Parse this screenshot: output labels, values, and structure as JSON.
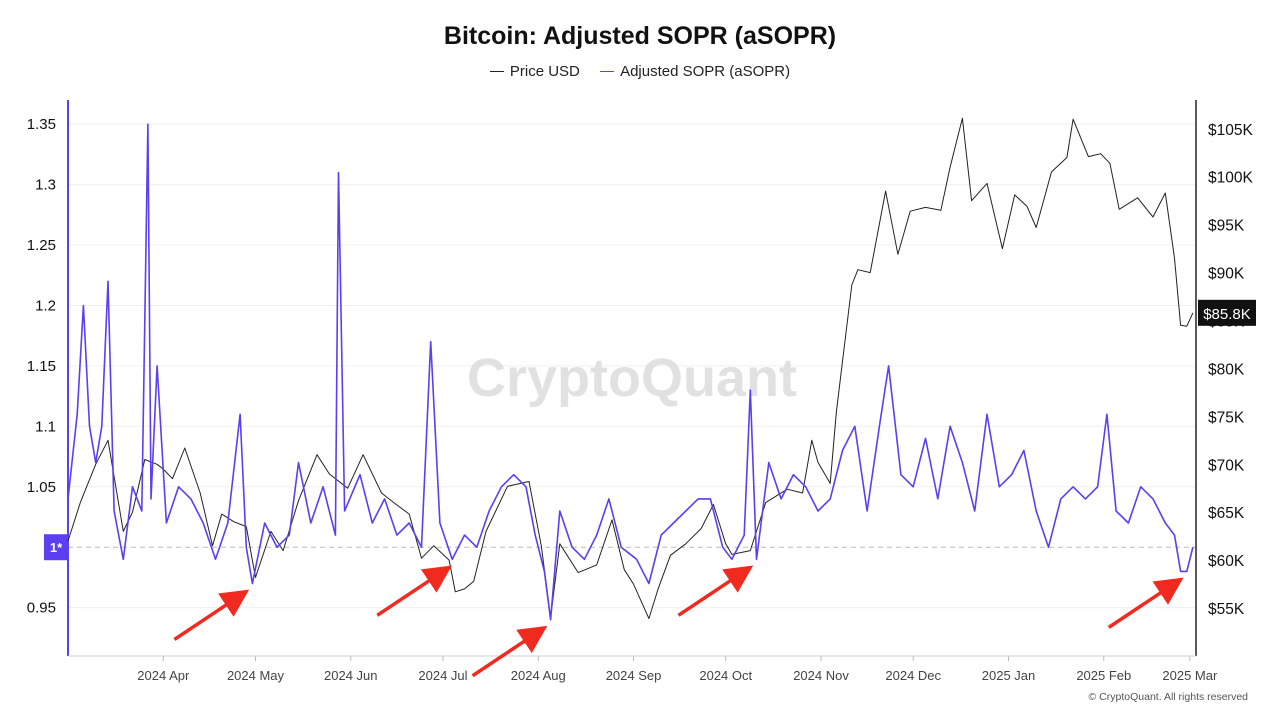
{
  "title": "Bitcoin: Adjusted SOPR (aSOPR)",
  "legend": [
    {
      "label": "Price USD",
      "color": "#222222"
    },
    {
      "label": "Adjusted SOPR (aSOPR)",
      "color": "#5b3ff0"
    }
  ],
  "watermark": "CryptoQuant",
  "copyright": "© CryptoQuant. All rights reserved",
  "colors": {
    "asopr": "#5b3ff0",
    "price": "#222222",
    "arrow": "#f02a1e",
    "accent": "#5b3ff0"
  },
  "chart_data": {
    "type": "line",
    "x_start_date": "2024-03-01",
    "x_end_date": "2025-03-03",
    "x_ticks": [
      "2024 Apr",
      "2024 May",
      "2024 Jun",
      "2024 Jul",
      "2024 Aug",
      "2024 Sep",
      "2024 Oct",
      "2024 Nov",
      "2024 Dec",
      "2025 Jan",
      "2025 Feb",
      "2025 Mar"
    ],
    "y_left": {
      "min": 0.91,
      "max": 1.37,
      "ticks": [
        "1.35",
        "1.3",
        "1.25",
        "1.2",
        "1.15",
        "1.1",
        "1.05",
        "0.95"
      ],
      "tick_values": [
        1.35,
        1.3,
        1.25,
        1.2,
        1.15,
        1.1,
        1.05,
        0.95
      ],
      "reference": 1.0,
      "reference_label": "1*"
    },
    "y_right": {
      "min": 50000,
      "max": 108000,
      "ticks": [
        "$105K",
        "$100K",
        "$95K",
        "$90K",
        "$85K",
        "$80K",
        "$75K",
        "$70K",
        "$65K",
        "$60K",
        "$55K"
      ],
      "tick_values": [
        105000,
        100000,
        95000,
        90000,
        85000,
        80000,
        75000,
        70000,
        65000,
        60000,
        55000
      ],
      "current_label": "$85.8K",
      "current_value": 85800
    },
    "series": [
      {
        "name": "Price USD",
        "axis": "right",
        "points": [
          [
            "2024-03-01",
            62000
          ],
          [
            "2024-03-05",
            66000
          ],
          [
            "2024-03-10",
            70000
          ],
          [
            "2024-03-14",
            72500
          ],
          [
            "2024-03-19",
            63000
          ],
          [
            "2024-03-22",
            65000
          ],
          [
            "2024-03-26",
            70500
          ],
          [
            "2024-03-30",
            70000
          ],
          [
            "2024-04-01",
            69500
          ],
          [
            "2024-04-04",
            68500
          ],
          [
            "2024-04-08",
            71700
          ],
          [
            "2024-04-13",
            67000
          ],
          [
            "2024-04-17",
            61500
          ],
          [
            "2024-04-20",
            64800
          ],
          [
            "2024-04-24",
            64000
          ],
          [
            "2024-04-28",
            63500
          ],
          [
            "2024-05-01",
            58200
          ],
          [
            "2024-05-06",
            63000
          ],
          [
            "2024-05-10",
            61000
          ],
          [
            "2024-05-15",
            66200
          ],
          [
            "2024-05-21",
            71000
          ],
          [
            "2024-05-25",
            69000
          ],
          [
            "2024-05-31",
            67500
          ],
          [
            "2024-06-05",
            71000
          ],
          [
            "2024-06-11",
            67000
          ],
          [
            "2024-06-15",
            66000
          ],
          [
            "2024-06-20",
            64800
          ],
          [
            "2024-06-24",
            60200
          ],
          [
            "2024-06-28",
            61500
          ],
          [
            "2024-07-03",
            60000
          ],
          [
            "2024-07-05",
            56700
          ],
          [
            "2024-07-08",
            57000
          ],
          [
            "2024-07-11",
            57800
          ],
          [
            "2024-07-15",
            63000
          ],
          [
            "2024-07-22",
            67700
          ],
          [
            "2024-07-29",
            68200
          ],
          [
            "2024-08-02",
            61500
          ],
          [
            "2024-08-05",
            54000
          ],
          [
            "2024-08-08",
            61700
          ],
          [
            "2024-08-14",
            58700
          ],
          [
            "2024-08-20",
            59500
          ],
          [
            "2024-08-25",
            64200
          ],
          [
            "2024-08-29",
            59000
          ],
          [
            "2024-09-01",
            57500
          ],
          [
            "2024-09-06",
            53900
          ],
          [
            "2024-09-09",
            57000
          ],
          [
            "2024-09-13",
            60500
          ],
          [
            "2024-09-18",
            61700
          ],
          [
            "2024-09-23",
            63300
          ],
          [
            "2024-09-27",
            65800
          ],
          [
            "2024-10-01",
            61700
          ],
          [
            "2024-10-03",
            60600
          ],
          [
            "2024-10-09",
            61000
          ],
          [
            "2024-10-14",
            66000
          ],
          [
            "2024-10-21",
            67400
          ],
          [
            "2024-10-26",
            67000
          ],
          [
            "2024-10-29",
            72500
          ],
          [
            "2024-10-31",
            70200
          ],
          [
            "2024-11-04",
            68000
          ],
          [
            "2024-11-06",
            75500
          ],
          [
            "2024-11-11",
            88700
          ],
          [
            "2024-11-13",
            90300
          ],
          [
            "2024-11-17",
            90000
          ],
          [
            "2024-11-22",
            98500
          ],
          [
            "2024-11-26",
            91900
          ],
          [
            "2024-11-30",
            96400
          ],
          [
            "2024-12-05",
            96800
          ],
          [
            "2024-12-10",
            96500
          ],
          [
            "2024-12-13",
            101000
          ],
          [
            "2024-12-17",
            106100
          ],
          [
            "2024-12-20",
            97500
          ],
          [
            "2024-12-25",
            99300
          ],
          [
            "2024-12-30",
            92500
          ],
          [
            "2025-01-03",
            98100
          ],
          [
            "2025-01-07",
            96900
          ],
          [
            "2025-01-10",
            94700
          ],
          [
            "2025-01-15",
            100500
          ],
          [
            "2025-01-20",
            102000
          ],
          [
            "2025-01-22",
            106000
          ],
          [
            "2025-01-27",
            102100
          ],
          [
            "2025-01-31",
            102400
          ],
          [
            "2025-02-03",
            101400
          ],
          [
            "2025-02-06",
            96600
          ],
          [
            "2025-02-12",
            97800
          ],
          [
            "2025-02-17",
            95800
          ],
          [
            "2025-02-21",
            98300
          ],
          [
            "2025-02-24",
            91500
          ],
          [
            "2025-02-26",
            84500
          ],
          [
            "2025-02-28",
            84400
          ],
          [
            "2025-03-02",
            85800
          ]
        ]
      },
      {
        "name": "Adjusted SOPR (aSOPR)",
        "axis": "left",
        "points": [
          [
            "2024-03-01",
            1.04
          ],
          [
            "2024-03-04",
            1.11
          ],
          [
            "2024-03-06",
            1.2
          ],
          [
            "2024-03-08",
            1.1
          ],
          [
            "2024-03-10",
            1.07
          ],
          [
            "2024-03-12",
            1.1
          ],
          [
            "2024-03-14",
            1.22
          ],
          [
            "2024-03-16",
            1.03
          ],
          [
            "2024-03-19",
            0.99
          ],
          [
            "2024-03-22",
            1.05
          ],
          [
            "2024-03-25",
            1.03
          ],
          [
            "2024-03-27",
            1.35
          ],
          [
            "2024-03-28",
            1.04
          ],
          [
            "2024-03-30",
            1.15
          ],
          [
            "2024-04-02",
            1.02
          ],
          [
            "2024-04-06",
            1.05
          ],
          [
            "2024-04-10",
            1.04
          ],
          [
            "2024-04-14",
            1.02
          ],
          [
            "2024-04-18",
            0.99
          ],
          [
            "2024-04-22",
            1.02
          ],
          [
            "2024-04-26",
            1.11
          ],
          [
            "2024-04-28",
            1.0
          ],
          [
            "2024-04-30",
            0.97
          ],
          [
            "2024-05-04",
            1.02
          ],
          [
            "2024-05-08",
            1.0
          ],
          [
            "2024-05-12",
            1.01
          ],
          [
            "2024-05-15",
            1.07
          ],
          [
            "2024-05-19",
            1.02
          ],
          [
            "2024-05-23",
            1.05
          ],
          [
            "2024-05-27",
            1.01
          ],
          [
            "2024-05-28",
            1.31
          ],
          [
            "2024-05-30",
            1.03
          ],
          [
            "2024-06-04",
            1.06
          ],
          [
            "2024-06-08",
            1.02
          ],
          [
            "2024-06-12",
            1.04
          ],
          [
            "2024-06-16",
            1.01
          ],
          [
            "2024-06-20",
            1.02
          ],
          [
            "2024-06-24",
            1.0
          ],
          [
            "2024-06-27",
            1.17
          ],
          [
            "2024-06-30",
            1.02
          ],
          [
            "2024-07-04",
            0.99
          ],
          [
            "2024-07-08",
            1.01
          ],
          [
            "2024-07-12",
            1.0
          ],
          [
            "2024-07-16",
            1.03
          ],
          [
            "2024-07-20",
            1.05
          ],
          [
            "2024-07-24",
            1.06
          ],
          [
            "2024-07-28",
            1.05
          ],
          [
            "2024-07-31",
            1.01
          ],
          [
            "2024-08-03",
            0.98
          ],
          [
            "2024-08-05",
            0.94
          ],
          [
            "2024-08-08",
            1.03
          ],
          [
            "2024-08-12",
            1.0
          ],
          [
            "2024-08-16",
            0.99
          ],
          [
            "2024-08-20",
            1.01
          ],
          [
            "2024-08-24",
            1.04
          ],
          [
            "2024-08-28",
            1.0
          ],
          [
            "2024-09-02",
            0.99
          ],
          [
            "2024-09-06",
            0.97
          ],
          [
            "2024-09-10",
            1.01
          ],
          [
            "2024-09-14",
            1.02
          ],
          [
            "2024-09-18",
            1.03
          ],
          [
            "2024-09-22",
            1.04
          ],
          [
            "2024-09-26",
            1.04
          ],
          [
            "2024-09-30",
            1.0
          ],
          [
            "2024-10-03",
            0.99
          ],
          [
            "2024-10-07",
            1.01
          ],
          [
            "2024-10-09",
            1.13
          ],
          [
            "2024-10-11",
            0.99
          ],
          [
            "2024-10-15",
            1.07
          ],
          [
            "2024-10-19",
            1.04
          ],
          [
            "2024-10-23",
            1.06
          ],
          [
            "2024-10-27",
            1.05
          ],
          [
            "2024-10-31",
            1.03
          ],
          [
            "2024-11-04",
            1.04
          ],
          [
            "2024-11-08",
            1.08
          ],
          [
            "2024-11-12",
            1.1
          ],
          [
            "2024-11-16",
            1.03
          ],
          [
            "2024-11-20",
            1.1
          ],
          [
            "2024-11-23",
            1.15
          ],
          [
            "2024-11-27",
            1.06
          ],
          [
            "2024-12-01",
            1.05
          ],
          [
            "2024-12-05",
            1.09
          ],
          [
            "2024-12-09",
            1.04
          ],
          [
            "2024-12-13",
            1.1
          ],
          [
            "2024-12-17",
            1.07
          ],
          [
            "2024-12-21",
            1.03
          ],
          [
            "2024-12-25",
            1.11
          ],
          [
            "2024-12-29",
            1.05
          ],
          [
            "2025-01-02",
            1.06
          ],
          [
            "2025-01-06",
            1.08
          ],
          [
            "2025-01-10",
            1.03
          ],
          [
            "2025-01-14",
            1.0
          ],
          [
            "2025-01-18",
            1.04
          ],
          [
            "2025-01-22",
            1.05
          ],
          [
            "2025-01-26",
            1.04
          ],
          [
            "2025-01-30",
            1.05
          ],
          [
            "2025-02-02",
            1.11
          ],
          [
            "2025-02-05",
            1.03
          ],
          [
            "2025-02-09",
            1.02
          ],
          [
            "2025-02-13",
            1.05
          ],
          [
            "2025-02-17",
            1.04
          ],
          [
            "2025-02-21",
            1.02
          ],
          [
            "2025-02-24",
            1.01
          ],
          [
            "2025-02-26",
            0.98
          ],
          [
            "2025-02-28",
            0.98
          ],
          [
            "2025-03-02",
            1.0
          ]
        ]
      }
    ],
    "annotations": [
      {
        "type": "arrow",
        "points_to_date": "2024-04-30",
        "points_to_value": 0.97
      },
      {
        "type": "arrow",
        "points_to_date": "2024-07-05",
        "points_to_value": 0.99
      },
      {
        "type": "arrow",
        "points_to_date": "2024-08-05",
        "points_to_value": 0.94
      },
      {
        "type": "arrow",
        "points_to_date": "2024-10-11",
        "points_to_value": 0.99
      },
      {
        "type": "arrow",
        "points_to_date": "2025-02-28",
        "points_to_value": 0.98
      }
    ]
  }
}
